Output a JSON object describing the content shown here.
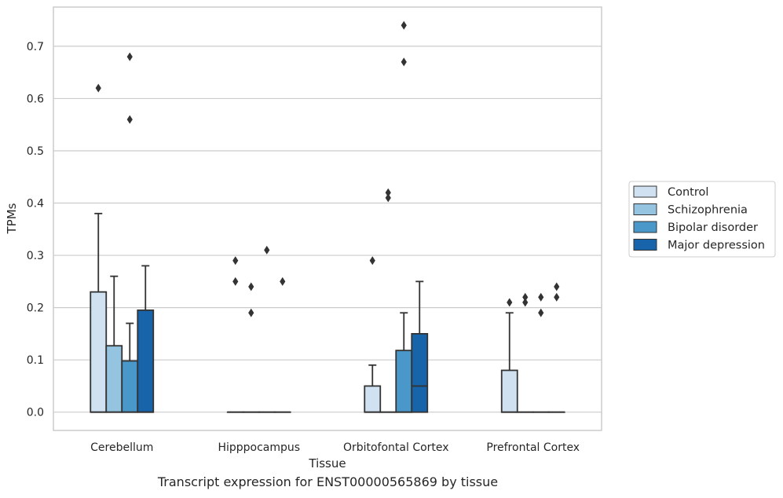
{
  "caption": "Transcript expression for ENST00000565869 by tissue",
  "chart_data": {
    "type": "box",
    "xlabel": "Tissue",
    "ylabel": "TPMs",
    "ylim": [
      -0.035,
      0.775
    ],
    "yticks": [
      0.0,
      0.1,
      0.2,
      0.3,
      0.4,
      0.5,
      0.6,
      0.7
    ],
    "ytick_labels": [
      "0.0",
      "0.1",
      "0.2",
      "0.3",
      "0.4",
      "0.5",
      "0.6",
      "0.7"
    ],
    "grid": "horizontal",
    "legend_position": "right",
    "categories": [
      "Cerebellum",
      "Hipppocampus",
      "Orbitofontal Cortex",
      "Prefrontal Cortex"
    ],
    "series": [
      {
        "name": "Control",
        "color": "#d0e1f2",
        "boxes": [
          {
            "q1": 0.0,
            "median": 0.0,
            "q3": 0.23,
            "whisker_low": 0.0,
            "whisker_high": 0.38,
            "outliers": [
              0.62
            ]
          },
          {
            "q1": 0.0,
            "median": 0.0,
            "q3": 0.0,
            "whisker_low": 0.0,
            "whisker_high": 0.0,
            "outliers": [
              0.25,
              0.29
            ]
          },
          {
            "q1": 0.0,
            "median": 0.0,
            "q3": 0.05,
            "whisker_low": 0.0,
            "whisker_high": 0.09,
            "outliers": [
              0.29
            ]
          },
          {
            "q1": 0.0,
            "median": 0.0,
            "q3": 0.08,
            "whisker_low": 0.0,
            "whisker_high": 0.19,
            "outliers": [
              0.21
            ]
          }
        ]
      },
      {
        "name": "Schizophrenia",
        "color": "#94c4df",
        "boxes": [
          {
            "q1": 0.0,
            "median": 0.0,
            "q3": 0.127,
            "whisker_low": 0.0,
            "whisker_high": 0.26,
            "outliers": []
          },
          {
            "q1": 0.0,
            "median": 0.0,
            "q3": 0.0,
            "whisker_low": 0.0,
            "whisker_high": 0.0,
            "outliers": [
              0.19,
              0.24
            ]
          },
          {
            "q1": 0.0,
            "median": 0.0,
            "q3": 0.0,
            "whisker_low": 0.0,
            "whisker_high": 0.0,
            "outliers": [
              0.41,
              0.42
            ]
          },
          {
            "q1": 0.0,
            "median": 0.0,
            "q3": 0.0,
            "whisker_low": 0.0,
            "whisker_high": 0.0,
            "outliers": [
              0.21,
              0.22
            ]
          }
        ]
      },
      {
        "name": "Bipolar disorder",
        "color": "#4a98c9",
        "boxes": [
          {
            "q1": 0.0,
            "median": 0.0,
            "q3": 0.098,
            "whisker_low": 0.0,
            "whisker_high": 0.17,
            "outliers": [
              0.56,
              0.68
            ]
          },
          {
            "q1": 0.0,
            "median": 0.0,
            "q3": 0.0,
            "whisker_low": 0.0,
            "whisker_high": 0.0,
            "outliers": [
              0.31
            ]
          },
          {
            "q1": 0.0,
            "median": 0.0,
            "q3": 0.118,
            "whisker_low": 0.0,
            "whisker_high": 0.19,
            "outliers": [
              0.67,
              0.74
            ]
          },
          {
            "q1": 0.0,
            "median": 0.0,
            "q3": 0.0,
            "whisker_low": 0.0,
            "whisker_high": 0.0,
            "outliers": [
              0.19,
              0.22
            ]
          }
        ]
      },
      {
        "name": "Major depression",
        "color": "#1764ab",
        "boxes": [
          {
            "q1": 0.0,
            "median": 0.0,
            "q3": 0.195,
            "whisker_low": 0.0,
            "whisker_high": 0.28,
            "outliers": []
          },
          {
            "q1": 0.0,
            "median": 0.0,
            "q3": 0.0,
            "whisker_low": 0.0,
            "whisker_high": 0.0,
            "outliers": [
              0.25
            ]
          },
          {
            "q1": 0.0,
            "median": 0.05,
            "q3": 0.15,
            "whisker_low": 0.0,
            "whisker_high": 0.25,
            "outliers": []
          },
          {
            "q1": 0.0,
            "median": 0.0,
            "q3": 0.0,
            "whisker_low": 0.0,
            "whisker_high": 0.0,
            "outliers": [
              0.22,
              0.24
            ]
          }
        ]
      }
    ],
    "colors": {
      "edge": "#333333",
      "grid": "#cccccc",
      "frame": "#cccccc"
    }
  }
}
